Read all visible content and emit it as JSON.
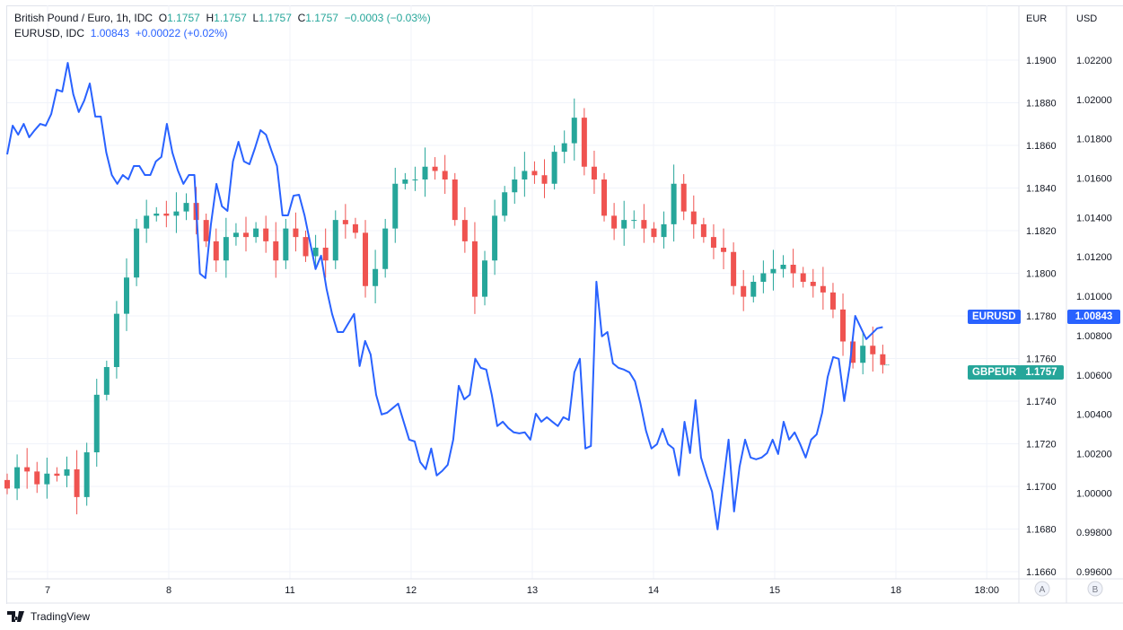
{
  "legend": {
    "main_title": "British Pound / Euro, 1h, IDC",
    "o_label": "O",
    "o": "1.1757",
    "h_label": "H",
    "h": "1.1757",
    "l_label": "L",
    "l": "1.1757",
    "c_label": "C",
    "c": "1.1757",
    "change": "−0.0003 (−0.03%)",
    "compare_title": "EURUSD, IDC",
    "compare_value": "1.00843",
    "compare_change": "+0.00022 (+0.02%)"
  },
  "tags": {
    "eurusd_label": "EURUSD",
    "eurusd_value": "1.00843",
    "gbpeur_label": "GBPEUR",
    "gbpeur_value": "1.1757"
  },
  "scale_buttons": {
    "left": "A",
    "right": "B"
  },
  "footer": {
    "brand": "TradingView"
  },
  "colors": {
    "up": "#26a69a",
    "down": "#ef5350",
    "line": "#2962ff",
    "grid": "#f0f3fa"
  },
  "chart_data": {
    "type": "candlestick+line",
    "left_axis_title": "EUR",
    "right_axis_title": "USD",
    "eur_axis": {
      "range": [
        1.166,
        1.19
      ],
      "ticks": [
        "1.1900",
        "1.1880",
        "1.1860",
        "1.1840",
        "1.1820",
        "1.1800",
        "1.1780",
        "1.1760",
        "1.1740",
        "1.1720",
        "1.1700",
        "1.1680",
        "1.1660"
      ]
    },
    "usd_axis": {
      "range": [
        0.996,
        1.022
      ],
      "ticks": [
        "1.02200",
        "1.02000",
        "1.01800",
        "1.01600",
        "1.01400",
        "1.01200",
        "1.01000",
        "1.00800",
        "1.00600",
        "1.00400",
        "1.00200",
        "1.00000",
        "0.99800",
        "0.99600"
      ]
    },
    "time_ticks": [
      {
        "label": "7",
        "hour": 8
      },
      {
        "label": "8",
        "hour": 32
      },
      {
        "label": "11",
        "hour": 56
      },
      {
        "label": "12",
        "hour": 80
      },
      {
        "label": "13",
        "hour": 104
      },
      {
        "label": "14",
        "hour": 128
      },
      {
        "label": "15",
        "hour": 152
      },
      {
        "label": "18",
        "hour": 176
      },
      {
        "label": "18:00",
        "hour": 194
      }
    ],
    "x_span_hours": [
      0,
      173.4
    ],
    "gbpeur_closes": [
      1.1699,
      1.1709,
      1.1707,
      1.1701,
      1.1706,
      1.1705,
      1.1708,
      1.1695,
      1.1716,
      1.1743,
      1.1756,
      1.1781,
      1.1798,
      1.1821,
      1.1827,
      1.1828,
      1.1827,
      1.1829,
      1.1833,
      1.1825,
      1.1815,
      1.1806,
      1.1817,
      1.1819,
      1.1817,
      1.1821,
      1.1815,
      1.1806,
      1.1821,
      1.1817,
      1.1808,
      1.1812,
      1.1806,
      1.1825,
      1.1823,
      1.1819,
      1.1794,
      1.1802,
      1.1821,
      1.1842,
      1.1844,
      1.1844,
      1.185,
      1.1848,
      1.1844,
      1.1825,
      1.1815,
      1.1789,
      1.1806,
      1.1827,
      1.1838,
      1.1844,
      1.1848,
      1.1846,
      1.1842,
      1.1857,
      1.1861,
      1.1873,
      1.185,
      1.1844,
      1.1827,
      1.1821,
      1.1825,
      1.1825,
      1.1821,
      1.1817,
      1.1823,
      1.1842,
      1.1829,
      1.1823,
      1.1817,
      1.1812,
      1.181,
      1.1794,
      1.1789,
      1.1796,
      1.18,
      1.1802,
      1.1804,
      1.18,
      1.1796,
      1.1794,
      1.1791,
      1.1783,
      1.1768,
      1.1758,
      1.1766,
      1.1762,
      1.1757
    ],
    "eurusd_values": [
      1.01721,
      1.01867,
      1.01821,
      1.01876,
      1.01808,
      1.01844,
      1.01876,
      1.01867,
      1.01926,
      1.0205,
      1.0204,
      1.02186,
      1.02027,
      1.01936,
      1.01995,
      1.02081,
      1.01913,
      1.01913,
      1.0173,
      1.01616,
      1.01571,
      1.01616,
      1.01594,
      1.01662,
      1.01662,
      1.01616,
      1.01616,
      1.01685,
      1.01708,
      1.01876,
      1.0173,
      1.01639,
      1.01571,
      1.01616,
      1.01616,
      1.01115,
      1.01092,
      1.01366,
      1.01571,
      1.01457,
      1.01434,
      1.01685,
      1.01785,
      1.01685,
      1.01671,
      1.01753,
      1.01844,
      1.01821,
      1.01739,
      1.01662,
      1.01411,
      1.01411,
      1.01511,
      1.01516,
      1.01411,
      1.01274,
      1.01138,
      1.01206,
      1.01037,
      1.0091,
      1.00818,
      1.00818,
      1.00864,
      1.0091,
      1.00645,
      1.00773,
      1.00704,
      1.00499,
      1.00399,
      1.00408,
      1.00431,
      1.00454,
      1.00362,
      1.00271,
      1.00262,
      1.00157,
      1.00121,
      1.00226,
      1.00089,
      1.00112,
      1.00143,
      1.00271,
      1.00545,
      1.00476,
      1.00499,
      1.00682,
      1.00636,
      1.00627,
      1.00499,
      1.0034,
      1.00362,
      1.0033,
      1.00308,
      1.00303,
      1.00308,
      1.00271,
      1.00403,
      1.00362,
      1.00385,
      1.00362,
      1.0034,
      1.00385,
      1.00371,
      1.00613,
      1.00682,
      1.00226,
      1.00239,
      1.01074,
      1.00796,
      1.00818,
      1.00659,
      1.00636,
      1.00627,
      1.00613,
      1.00568,
      1.00454,
      1.00317,
      1.00226,
      1.00248,
      1.00326,
      1.00248,
      1.00226,
      1.00089,
      1.00362,
      1.00203,
      1.00472,
      1.0018,
      1.00089,
      1.00007,
      0.99815,
      1.00043,
      1.00271,
      0.99906,
      1.00134,
      1.00271,
      1.0018,
      1.00171,
      1.0018,
      1.00203,
      1.00271,
      1.00198,
      1.00362,
      1.00271,
      1.00308,
      1.00248,
      1.0018,
      1.00271,
      1.00298,
      1.00408,
      1.0059,
      1.00691,
      1.00682,
      1.00467,
      1.00645,
      1.009,
      1.00841,
      1.00782,
      1.00809,
      1.00837,
      1.00843
    ]
  }
}
